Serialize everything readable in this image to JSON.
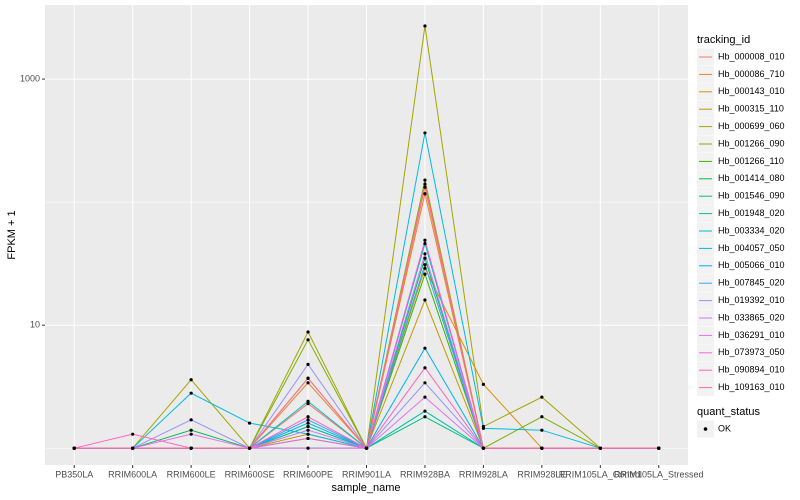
{
  "chart_data": {
    "type": "line",
    "x_label": "sample_name",
    "y_label": "FPKM + 1",
    "legend_title": "tracking_id",
    "point_legend_title": "quant_status",
    "point_legend_label": "OK",
    "log_y": true,
    "grid": true,
    "legend_position": "right",
    "point_color": "#000000",
    "categories": [
      "PB350LA",
      "RRIM600LA",
      "RRIM600LE",
      "RRIM600SE",
      "RRIM600PE",
      "RRIM901LA",
      "RRIM928BA",
      "RRIM928LA",
      "RRIM928LE",
      "RRIM105LA_Control",
      "RRIM105LA_Stressed"
    ],
    "ylim": [
      0.73,
      4000
    ],
    "yticks": [
      10,
      1000
    ],
    "minor_yticks": [
      1,
      100
    ],
    "series": [
      {
        "name": "Hb_000008_010",
        "color": "#F8766D",
        "values": [
          1,
          1,
          1,
          1,
          2.3,
          1,
          132,
          1,
          1,
          1,
          1
        ]
      },
      {
        "name": "Hb_000086_710",
        "color": "#EA8331",
        "values": [
          1,
          1,
          1,
          1,
          3.4,
          1,
          117,
          1,
          1,
          1,
          1
        ]
      },
      {
        "name": "Hb_000143_010",
        "color": "#D89000",
        "values": [
          1,
          1,
          1,
          1,
          3.7,
          1,
          29,
          3.3,
          1,
          1,
          1
        ]
      },
      {
        "name": "Hb_000315_110",
        "color": "#C09B00",
        "values": [
          1,
          1,
          1,
          1,
          1.3,
          1,
          16,
          1,
          1,
          1,
          1
        ]
      },
      {
        "name": "Hb_000699_060",
        "color": "#A3A500",
        "values": [
          1,
          1,
          3.6,
          1,
          8.8,
          1,
          2700,
          1.5,
          2.6,
          1,
          1
        ]
      },
      {
        "name": "Hb_001266_090",
        "color": "#7CAE00",
        "values": [
          1,
          1,
          1,
          1,
          7.6,
          1,
          151,
          1,
          1.8,
          1,
          1
        ]
      },
      {
        "name": "Hb_001266_110",
        "color": "#39B600",
        "values": [
          1,
          1,
          1,
          1,
          1.5,
          1,
          26,
          1,
          1,
          1,
          1
        ]
      },
      {
        "name": "Hb_001414_080",
        "color": "#00BB4E",
        "values": [
          1,
          1,
          1.4,
          1,
          1,
          1,
          35,
          1,
          1,
          1,
          1
        ]
      },
      {
        "name": "Hb_001546_090",
        "color": "#00BF7D",
        "values": [
          1,
          1,
          1,
          1,
          1.2,
          1,
          1.8,
          1,
          1,
          1,
          1
        ]
      },
      {
        "name": "Hb_001948_020",
        "color": "#00C1A3",
        "values": [
          1,
          1,
          1,
          1,
          1.5,
          1,
          2,
          1,
          1,
          1,
          1
        ]
      },
      {
        "name": "Hb_003334_020",
        "color": "#00BFC4",
        "values": [
          1,
          1,
          1,
          1,
          2.4,
          1,
          46,
          1,
          1,
          1,
          1
        ]
      },
      {
        "name": "Hb_004057_050",
        "color": "#00BAE0",
        "values": [
          1,
          1,
          2.8,
          1.6,
          1.3,
          1,
          365,
          1.45,
          1.4,
          1,
          1
        ]
      },
      {
        "name": "Hb_005066_010",
        "color": "#00B0F6",
        "values": [
          1,
          1,
          1,
          1,
          1.6,
          1,
          6.5,
          1,
          1,
          1,
          1
        ]
      },
      {
        "name": "Hb_007845_020",
        "color": "#35A2FF",
        "values": [
          1,
          1,
          1,
          1,
          1.7,
          1,
          31,
          1,
          1,
          1,
          1
        ]
      },
      {
        "name": "Hb_019392_010",
        "color": "#9590FF",
        "values": [
          1,
          1,
          1.7,
          1,
          4.8,
          1,
          3.4,
          1,
          1,
          1,
          1
        ]
      },
      {
        "name": "Hb_033865_020",
        "color": "#C77CFF",
        "values": [
          1,
          1,
          1,
          1,
          1.4,
          1,
          38,
          1,
          1,
          1,
          1
        ]
      },
      {
        "name": "Hb_036291_010",
        "color": "#E76BF3",
        "values": [
          1,
          1,
          1.3,
          1,
          1,
          1,
          2.6,
          1,
          1,
          1,
          1
        ]
      },
      {
        "name": "Hb_073973_050",
        "color": "#FA62DB",
        "values": [
          1,
          1,
          1,
          1,
          1.2,
          1,
          49,
          1,
          1,
          1,
          1
        ]
      },
      {
        "name": "Hb_090894_010",
        "color": "#FF62BC",
        "values": [
          1,
          1.3,
          1,
          1,
          1.8,
          1,
          4.5,
          1,
          1,
          1,
          1
        ]
      },
      {
        "name": "Hb_109163_010",
        "color": "#FF6C91",
        "values": [
          1,
          1,
          1,
          1,
          3.7,
          1,
          140,
          1,
          1,
          1,
          1
        ]
      }
    ]
  }
}
